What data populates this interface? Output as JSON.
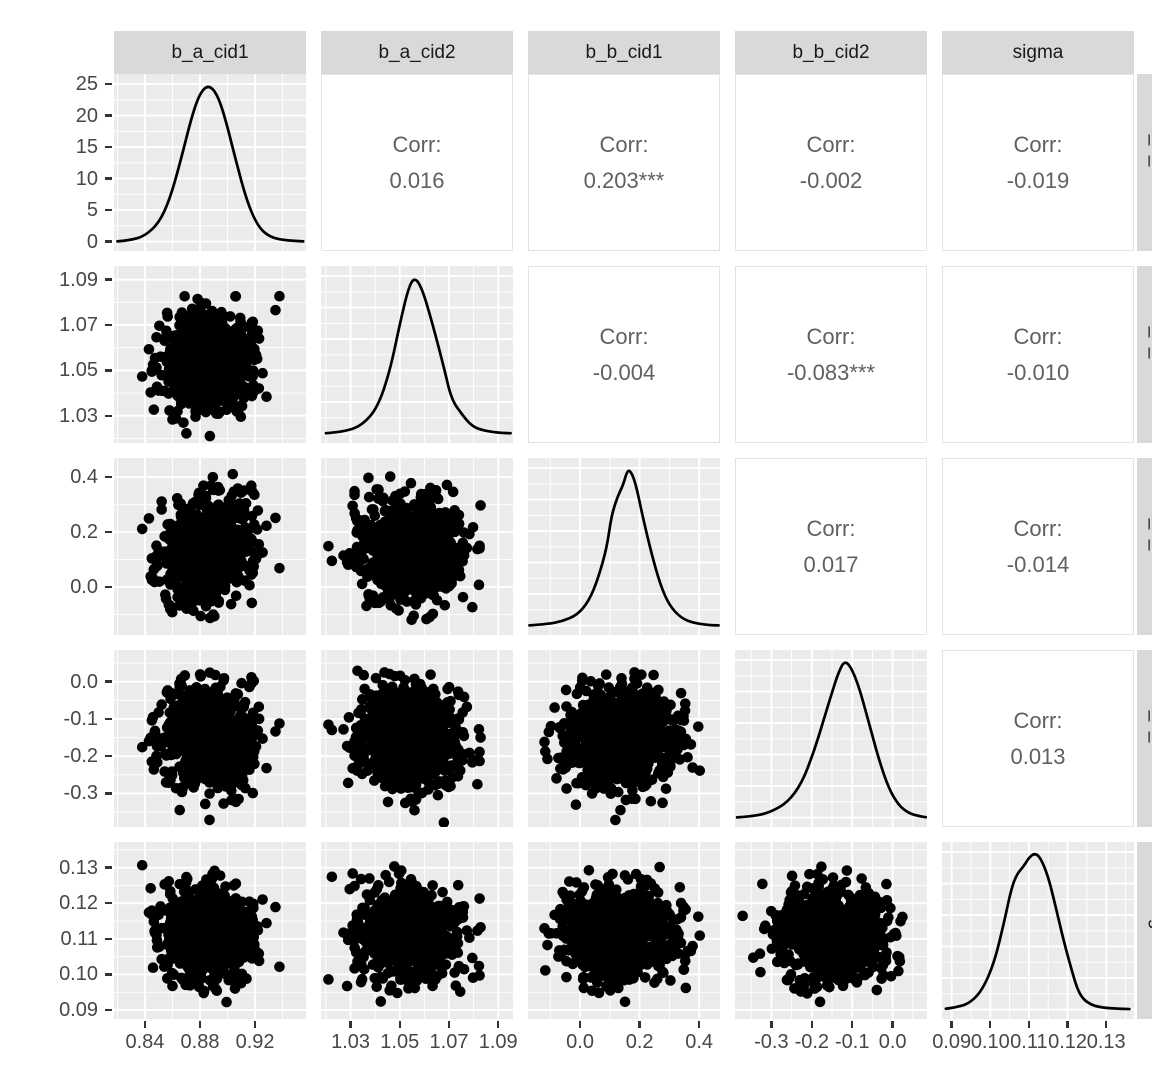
{
  "colors": {
    "panel_bg": "#ebebeb",
    "grid": "#ffffff",
    "strip_bg": "#d9d9d9",
    "strip_text": "#1a1a1a",
    "axis_text": "#474747",
    "tick_mark": "#333333",
    "corr_text": "#606060",
    "corr_border": "#e3e3e3",
    "data_black": "#000000"
  },
  "chart_data": {
    "type": "scatter",
    "subtype": "pairs-matrix (ggpairs): density diagonal, correlation upper triangle, scatter lower triangle",
    "title": "",
    "legend": false,
    "grid": true,
    "corr_prefix": "Corr:",
    "variables": [
      {
        "name": "b_a_cid1",
        "ticks": [
          0.84,
          0.88,
          0.92
        ],
        "tick_labels": [
          "0.84",
          "0.88",
          "0.92"
        ],
        "range": [
          0.8175,
          0.957
        ],
        "mean": 0.886,
        "sd": 0.0162,
        "density": [
          [
            0.82,
            0.004
          ],
          [
            0.83,
            0.012
          ],
          [
            0.84,
            0.04
          ],
          [
            0.85,
            0.12
          ],
          [
            0.858,
            0.27
          ],
          [
            0.866,
            0.52
          ],
          [
            0.874,
            0.8
          ],
          [
            0.88,
            0.95
          ],
          [
            0.886,
            1.0
          ],
          [
            0.892,
            0.95
          ],
          [
            0.898,
            0.8
          ],
          [
            0.906,
            0.52
          ],
          [
            0.914,
            0.26
          ],
          [
            0.922,
            0.1
          ],
          [
            0.93,
            0.035
          ],
          [
            0.94,
            0.012
          ],
          [
            0.955,
            0.004
          ]
        ]
      },
      {
        "name": "b_a_cid2",
        "ticks": [
          1.03,
          1.05,
          1.07,
          1.09
        ],
        "tick_labels": [
          "1.03",
          "1.05",
          "1.07",
          "1.09"
        ],
        "range": [
          1.018,
          1.096
        ],
        "mean": 1.054,
        "sd": 0.01,
        "density": [
          [
            1.02,
            0.005
          ],
          [
            1.028,
            0.015
          ],
          [
            1.035,
            0.06
          ],
          [
            1.041,
            0.17
          ],
          [
            1.046,
            0.4
          ],
          [
            1.05,
            0.7
          ],
          [
            1.0535,
            0.93
          ],
          [
            1.056,
            1.0
          ],
          [
            1.059,
            0.93
          ],
          [
            1.063,
            0.72
          ],
          [
            1.068,
            0.42
          ],
          [
            1.071,
            0.22
          ],
          [
            1.0755,
            0.12
          ],
          [
            1.079,
            0.055
          ],
          [
            1.083,
            0.025
          ],
          [
            1.09,
            0.008
          ],
          [
            1.095,
            0.005
          ]
        ]
      },
      {
        "name": "b_b_cid1",
        "ticks": [
          0.0,
          0.2,
          0.4
        ],
        "tick_labels": [
          "0.0",
          "0.2",
          "0.4"
        ],
        "range": [
          -0.175,
          0.47
        ],
        "mean": 0.135,
        "sd": 0.088,
        "density": [
          [
            -0.17,
            0.004
          ],
          [
            -0.11,
            0.012
          ],
          [
            -0.06,
            0.03
          ],
          [
            -0.01,
            0.07
          ],
          [
            0.03,
            0.16
          ],
          [
            0.06,
            0.3
          ],
          [
            0.09,
            0.5
          ],
          [
            0.105,
            0.7
          ],
          [
            0.125,
            0.82
          ],
          [
            0.145,
            0.9
          ],
          [
            0.16,
            1.0
          ],
          [
            0.175,
            0.97
          ],
          [
            0.19,
            0.88
          ],
          [
            0.21,
            0.7
          ],
          [
            0.24,
            0.46
          ],
          [
            0.27,
            0.26
          ],
          [
            0.3,
            0.13
          ],
          [
            0.34,
            0.05
          ],
          [
            0.38,
            0.02
          ],
          [
            0.43,
            0.006
          ],
          [
            0.465,
            0.004
          ]
        ]
      },
      {
        "name": "b_b_cid2",
        "ticks": [
          -0.3,
          -0.2,
          -0.1,
          0.0
        ],
        "tick_labels": [
          "-0.3",
          "-0.2",
          "-0.1",
          "0.0"
        ],
        "range": [
          -0.39,
          0.085
        ],
        "mean": -0.148,
        "sd": 0.068,
        "density": [
          [
            -0.385,
            0.004
          ],
          [
            -0.34,
            0.012
          ],
          [
            -0.3,
            0.04
          ],
          [
            -0.26,
            0.1
          ],
          [
            -0.225,
            0.22
          ],
          [
            -0.195,
            0.42
          ],
          [
            -0.17,
            0.63
          ],
          [
            -0.15,
            0.8
          ],
          [
            -0.135,
            0.92
          ],
          [
            -0.12,
            1.0
          ],
          [
            -0.105,
            0.97
          ],
          [
            -0.085,
            0.85
          ],
          [
            -0.06,
            0.62
          ],
          [
            -0.035,
            0.38
          ],
          [
            -0.01,
            0.19
          ],
          [
            0.015,
            0.08
          ],
          [
            0.04,
            0.03
          ],
          [
            0.065,
            0.012
          ],
          [
            0.082,
            0.005
          ]
        ]
      },
      {
        "name": "sigma",
        "ticks": [
          0.09,
          0.1,
          0.11,
          0.12,
          0.13
        ],
        "tick_labels": [
          "0.09",
          "0.10",
          "0.11",
          "0.12",
          "0.13"
        ],
        "range": [
          0.0875,
          0.1372
        ],
        "mean": 0.1115,
        "sd": 0.0066,
        "density": [
          [
            0.0885,
            0.008
          ],
          [
            0.092,
            0.02
          ],
          [
            0.095,
            0.05
          ],
          [
            0.098,
            0.13
          ],
          [
            0.101,
            0.3
          ],
          [
            0.1035,
            0.55
          ],
          [
            0.1055,
            0.78
          ],
          [
            0.107,
            0.87
          ],
          [
            0.1085,
            0.91
          ],
          [
            0.11,
            0.97
          ],
          [
            0.1115,
            1.0
          ],
          [
            0.113,
            0.97
          ],
          [
            0.115,
            0.85
          ],
          [
            0.117,
            0.65
          ],
          [
            0.119,
            0.44
          ],
          [
            0.121,
            0.26
          ],
          [
            0.1225,
            0.135
          ],
          [
            0.124,
            0.07
          ],
          [
            0.126,
            0.035
          ],
          [
            0.128,
            0.02
          ],
          [
            0.131,
            0.01
          ],
          [
            0.136,
            0.006
          ]
        ]
      }
    ],
    "density_axis_row1": {
      "ticks": [
        0,
        5,
        10,
        15,
        20,
        25
      ],
      "tick_labels": [
        "0",
        "5",
        "10",
        "15",
        "20",
        "25"
      ],
      "range": [
        -1.5,
        26.6
      ],
      "peak_value": 24.8
    },
    "correlations": [
      {
        "row": 0,
        "col": 1,
        "value": 0.016,
        "label": "0.016"
      },
      {
        "row": 0,
        "col": 2,
        "value": 0.203,
        "label": "0.203***"
      },
      {
        "row": 0,
        "col": 3,
        "value": -0.002,
        "label": "-0.002"
      },
      {
        "row": 0,
        "col": 4,
        "value": -0.019,
        "label": "-0.019"
      },
      {
        "row": 1,
        "col": 2,
        "value": -0.004,
        "label": "-0.004"
      },
      {
        "row": 1,
        "col": 3,
        "value": -0.083,
        "label": "-0.083***"
      },
      {
        "row": 1,
        "col": 4,
        "value": -0.01,
        "label": "-0.010"
      },
      {
        "row": 2,
        "col": 3,
        "value": 0.017,
        "label": "0.017"
      },
      {
        "row": 2,
        "col": 4,
        "value": -0.014,
        "label": "-0.014"
      },
      {
        "row": 3,
        "col": 4,
        "value": 0.013,
        "label": "0.013"
      }
    ],
    "render_hints": {
      "points_per_scatter": 800,
      "point_radius_px": 5.3,
      "seed": 1000
    }
  }
}
